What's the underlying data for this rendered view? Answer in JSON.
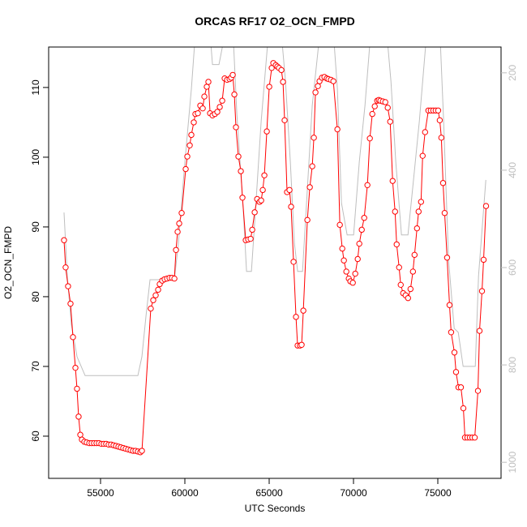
{
  "chart_data": {
    "type": "line",
    "title": "ORCAS RF17 O2_OCN_FMPD",
    "x_label": "UTC Seconds",
    "y_label": "O2_OCN_FMPD",
    "xlim": [
      51923,
      78750
    ],
    "ylim": [
      53.95,
      115.8
    ],
    "y2lim": [
      1033,
      147
    ],
    "xticks": [
      55000,
      60000,
      65000,
      70000,
      75000
    ],
    "yticks": [
      60,
      70,
      80,
      90,
      100,
      110
    ],
    "y2ticks": [
      200,
      400,
      600,
      800,
      1000
    ],
    "series": [
      {
        "color": "#ff0000",
        "markers": true,
        "x": [
          52835,
          52930,
          53075,
          53220,
          53365,
          53510,
          53605,
          53700,
          53800,
          53895,
          54040,
          54180,
          54330,
          54470,
          54615,
          54760,
          54905,
          55050,
          55190,
          55335,
          55480,
          55625,
          55770,
          55915,
          56060,
          56200,
          56345,
          56490,
          56635,
          56780,
          56925,
          57070,
          57215,
          57360,
          57455,
          57980,
          58125,
          58270,
          58415,
          58510,
          58655,
          58800,
          58945,
          59090,
          59235,
          59380,
          59475,
          59570,
          59665,
          59810,
          60050,
          60145,
          60290,
          60385,
          60530,
          60625,
          60770,
          60915,
          61060,
          61155,
          61300,
          61395,
          61495,
          61640,
          61780,
          61925,
          62070,
          62215,
          62360,
          62505,
          62650,
          62745,
          62840,
          62935,
          63030,
          63175,
          63320,
          63415,
          63610,
          63755,
          63900,
          63995,
          64140,
          64285,
          64430,
          64525,
          64620,
          64715,
          64860,
          65005,
          65150,
          65245,
          65390,
          65485,
          65580,
          65725,
          65820,
          65915,
          66060,
          66205,
          66300,
          66445,
          66590,
          66685,
          66830,
          66925,
          67025,
          67265,
          67410,
          67555,
          67650,
          67745,
          67890,
          67985,
          68130,
          68275,
          68420,
          68515,
          68660,
          68805,
          69045,
          69190,
          69335,
          69430,
          69575,
          69720,
          69815,
          69960,
          70105,
          70250,
          70345,
          70490,
          70635,
          70825,
          70970,
          71115,
          71260,
          71405,
          71500,
          71595,
          71740,
          71885,
          72030,
          72175,
          72320,
          72465,
          72560,
          72705,
          72800,
          72945,
          73090,
          73235,
          73380,
          73525,
          73620,
          73765,
          73860,
          74005,
          74100,
          74245,
          74440,
          74585,
          74730,
          74875,
          75020,
          75115,
          75210,
          75310,
          75405,
          75550,
          75695,
          75790,
          75985,
          76080,
          76225,
          76370,
          76515,
          76610,
          76755,
          76900,
          77045,
          77190,
          77380,
          77475,
          77620,
          77715,
          77860
        ],
        "values": [
          88.1,
          84.2,
          81.5,
          79,
          74.2,
          69.8,
          66.8,
          62.8,
          60.2,
          59.5,
          59.2,
          59.1,
          59,
          59,
          59,
          59,
          59,
          58.9,
          58.9,
          58.9,
          58.8,
          58.8,
          58.7,
          58.6,
          58.5,
          58.4,
          58.3,
          58.2,
          58.1,
          58,
          57.9,
          57.9,
          57.8,
          57.7,
          57.9,
          78.3,
          79.5,
          80.2,
          81,
          81.8,
          82.3,
          82.5,
          82.6,
          82.7,
          82.7,
          82.6,
          86.7,
          89.3,
          90.5,
          92,
          98.3,
          100.1,
          101.7,
          103.2,
          105,
          106.2,
          106.3,
          107.4,
          107,
          108.7,
          110.1,
          110.8,
          106.3,
          106,
          106.2,
          106.5,
          107.2,
          108.1,
          111.3,
          111.1,
          111.2,
          111.4,
          111.8,
          109,
          104.3,
          100.1,
          98,
          94.2,
          88.1,
          88.2,
          88.3,
          89.6,
          92.1,
          94,
          93.6,
          93.8,
          95.3,
          97.4,
          103.7,
          110.1,
          112.8,
          113.5,
          113.2,
          113,
          112.8,
          112.5,
          110.8,
          105.3,
          95,
          95.3,
          92.9,
          85,
          77.1,
          73,
          73,
          73.1,
          78,
          91,
          95.7,
          98.7,
          102.8,
          109.3,
          110.2,
          110.9,
          111.4,
          111.5,
          111.3,
          111.2,
          111.1,
          110.9,
          104,
          90.3,
          86.9,
          85.2,
          83.6,
          82.6,
          82.2,
          82,
          83.3,
          85.4,
          87.6,
          89.6,
          91.3,
          96,
          102.7,
          106.2,
          107.3,
          108.1,
          108.2,
          108.1,
          108,
          107.9,
          107.1,
          105.1,
          96.6,
          92.2,
          87.5,
          84.2,
          81.7,
          80.5,
          80.2,
          79.8,
          81.1,
          83.6,
          86,
          89.8,
          92.2,
          93.6,
          100.2,
          103.6,
          106.7,
          106.7,
          106.7,
          106.7,
          106.7,
          105.3,
          102.8,
          96.3,
          92,
          85.6,
          78.8,
          74.9,
          72,
          69.2,
          67,
          67,
          64,
          59.8,
          59.8,
          59.8,
          59.8,
          59.8,
          66.5,
          75.1,
          80.8,
          85.3,
          93
        ]
      },
      {
        "color": "#bebebe",
        "axis": "y2",
        "markers": false,
        "x": [
          52835,
          53028,
          53268,
          53605,
          54086,
          57213,
          57453,
          57694,
          57934,
          59377,
          59618,
          60002,
          60387,
          60580,
          61542,
          61638,
          62023,
          62263,
          62888,
          63081,
          63466,
          63658,
          63947,
          64187,
          64524,
          64909,
          65774,
          65967,
          66255,
          66496,
          66688,
          66977,
          67217,
          67554,
          67939,
          68853,
          69045,
          69286,
          69622,
          70007,
          70344,
          70681,
          70969,
          72027,
          72220,
          72508,
          72845,
          73230,
          73567,
          73903,
          74288,
          75154,
          75346,
          75635,
          75972,
          76212,
          76501,
          77222,
          77415,
          77848
        ],
        "values": [
          487,
          617,
          717,
          783,
          822,
          822,
          783,
          700,
          625,
          625,
          550,
          383,
          233,
          140,
          140,
          183,
          183,
          140,
          140,
          283,
          483,
          608,
          608,
          483,
          300,
          140,
          140,
          217,
          383,
          550,
          608,
          608,
          467,
          267,
          140,
          140,
          233,
          467,
          533,
          533,
          383,
          267,
          140,
          140,
          217,
          383,
          533,
          533,
          417,
          300,
          140,
          140,
          300,
          583,
          725,
          733,
          803,
          803,
          617,
          420
        ]
      }
    ]
  }
}
